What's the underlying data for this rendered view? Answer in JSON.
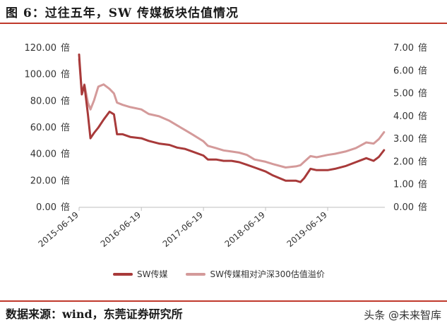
{
  "header": {
    "title": "图 6：过往五年，SW 传媒板块估值情况"
  },
  "footer": {
    "source": "数据来源：wind，东莞证券研究所",
    "watermark": "头条 @未来智库"
  },
  "chart_data": {
    "type": "line",
    "x_ticks": [
      "2015-06-19",
      "2016-06-19",
      "2017-06-19",
      "2018-06-19",
      "2019-06-19"
    ],
    "y_left": {
      "unit": "倍",
      "ticks": [
        0,
        20,
        40,
        60,
        80,
        100,
        120
      ],
      "tick_labels": [
        "0.00",
        "20.00",
        "40.00",
        "60.00",
        "80.00",
        "100.00",
        "120.00"
      ],
      "range": [
        0,
        120
      ]
    },
    "y_right": {
      "unit": "倍",
      "ticks": [
        0,
        1,
        2,
        3,
        4,
        5,
        6,
        7
      ],
      "tick_labels": [
        "0.00",
        "1.00",
        "2.00",
        "3.00",
        "4.00",
        "5.00",
        "6.00",
        "7.00"
      ],
      "range": [
        0,
        7
      ]
    },
    "series": [
      {
        "name": "SW传媒",
        "axis": "left",
        "color": "#a83a3a",
        "points": [
          [
            "2015-06-19",
            115
          ],
          [
            "2015-07-05",
            85
          ],
          [
            "2015-07-20",
            92
          ],
          [
            "2015-08-10",
            70
          ],
          [
            "2015-08-25",
            52
          ],
          [
            "2015-09-15",
            56
          ],
          [
            "2015-10-10",
            60
          ],
          [
            "2015-11-10",
            66
          ],
          [
            "2015-12-15",
            72
          ],
          [
            "2016-01-10",
            70
          ],
          [
            "2016-01-28",
            55
          ],
          [
            "2016-03-01",
            55
          ],
          [
            "2016-04-15",
            53
          ],
          [
            "2016-06-19",
            52
          ],
          [
            "2016-08-01",
            50
          ],
          [
            "2016-10-01",
            48
          ],
          [
            "2016-12-01",
            47
          ],
          [
            "2017-01-15",
            45
          ],
          [
            "2017-03-01",
            44
          ],
          [
            "2017-04-15",
            42
          ],
          [
            "2017-06-19",
            39
          ],
          [
            "2017-07-15",
            36
          ],
          [
            "2017-09-01",
            36
          ],
          [
            "2017-10-15",
            35
          ],
          [
            "2017-12-01",
            35
          ],
          [
            "2018-01-15",
            34
          ],
          [
            "2018-03-01",
            32
          ],
          [
            "2018-04-15",
            30
          ],
          [
            "2018-06-19",
            27
          ],
          [
            "2018-08-01",
            24
          ],
          [
            "2018-10-15",
            20
          ],
          [
            "2018-12-15",
            20
          ],
          [
            "2019-01-10",
            19
          ],
          [
            "2019-02-01",
            22
          ],
          [
            "2019-03-10",
            29
          ],
          [
            "2019-04-15",
            28
          ],
          [
            "2019-06-19",
            28
          ],
          [
            "2019-08-01",
            29
          ],
          [
            "2019-10-01",
            31
          ],
          [
            "2019-12-01",
            34
          ],
          [
            "2020-02-01",
            37
          ],
          [
            "2020-03-15",
            35
          ],
          [
            "2020-04-15",
            38
          ],
          [
            "2020-05-15",
            43
          ]
        ]
      },
      {
        "name": "SW传媒相对沪深300估值溢价",
        "axis": "right",
        "color": "#d49a9a",
        "points": [
          [
            "2015-06-19",
            6.5
          ],
          [
            "2015-07-05",
            5.0
          ],
          [
            "2015-07-20",
            5.4
          ],
          [
            "2015-08-10",
            4.6
          ],
          [
            "2015-08-25",
            4.3
          ],
          [
            "2015-09-15",
            4.7
          ],
          [
            "2015-10-10",
            5.3
          ],
          [
            "2015-11-10",
            5.4
          ],
          [
            "2015-12-15",
            5.2
          ],
          [
            "2016-01-10",
            5.0
          ],
          [
            "2016-01-28",
            4.6
          ],
          [
            "2016-03-01",
            4.5
          ],
          [
            "2016-04-15",
            4.4
          ],
          [
            "2016-06-19",
            4.3
          ],
          [
            "2016-08-01",
            4.1
          ],
          [
            "2016-10-01",
            4.0
          ],
          [
            "2016-12-01",
            3.8
          ],
          [
            "2017-01-15",
            3.6
          ],
          [
            "2017-03-01",
            3.4
          ],
          [
            "2017-04-15",
            3.2
          ],
          [
            "2017-06-19",
            2.9
          ],
          [
            "2017-07-15",
            2.7
          ],
          [
            "2017-09-01",
            2.6
          ],
          [
            "2017-10-15",
            2.5
          ],
          [
            "2017-12-01",
            2.45
          ],
          [
            "2018-01-15",
            2.4
          ],
          [
            "2018-03-01",
            2.3
          ],
          [
            "2018-04-15",
            2.1
          ],
          [
            "2018-06-19",
            2.0
          ],
          [
            "2018-08-01",
            1.9
          ],
          [
            "2018-10-15",
            1.75
          ],
          [
            "2018-12-15",
            1.8
          ],
          [
            "2019-01-10",
            1.85
          ],
          [
            "2019-02-01",
            2.0
          ],
          [
            "2019-03-10",
            2.25
          ],
          [
            "2019-04-15",
            2.2
          ],
          [
            "2019-06-19",
            2.3
          ],
          [
            "2019-08-01",
            2.35
          ],
          [
            "2019-10-01",
            2.45
          ],
          [
            "2019-12-01",
            2.6
          ],
          [
            "2020-02-01",
            2.85
          ],
          [
            "2020-03-15",
            2.8
          ],
          [
            "2020-04-15",
            3.0
          ],
          [
            "2020-05-15",
            3.3
          ]
        ]
      }
    ],
    "x_start": "2015-06-19",
    "x_end": "2020-05-20",
    "grid": false,
    "legend_position": "bottom"
  }
}
